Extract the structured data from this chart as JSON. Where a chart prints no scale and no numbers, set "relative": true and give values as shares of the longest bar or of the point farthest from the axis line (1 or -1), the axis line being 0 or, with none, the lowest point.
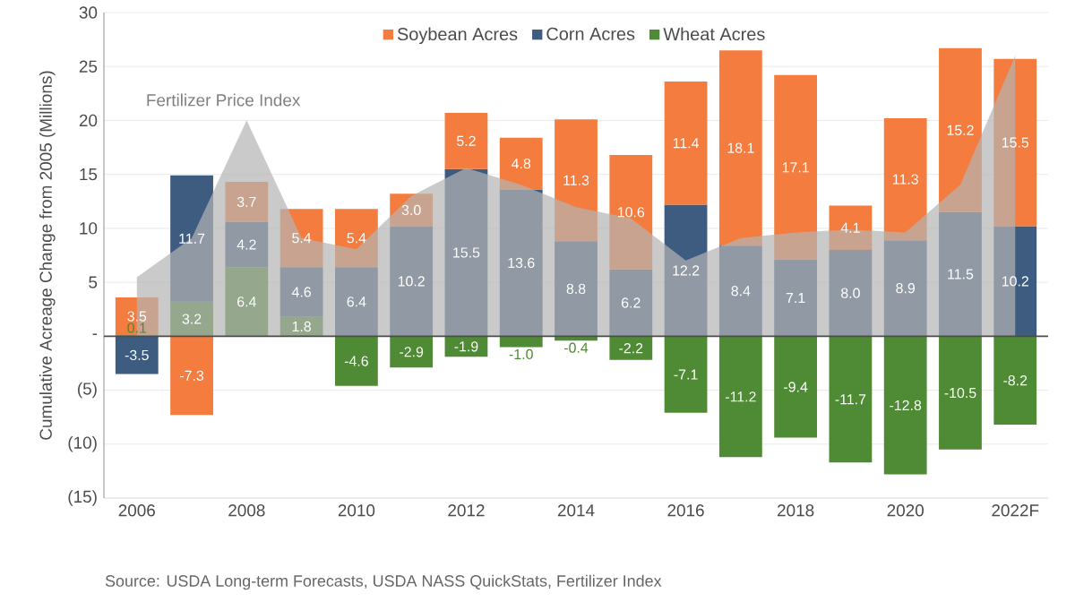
{
  "chart_data": [
    {
      "type": "bar",
      "stacked": true,
      "ylabel": "Cumulative Acreage Change from 2005 (Millions)",
      "categories": [
        "2006",
        null,
        "2008",
        null,
        "2010",
        null,
        "2012",
        null,
        "2014",
        null,
        "2016",
        null,
        "2018",
        null,
        "2020",
        null,
        "2022F"
      ],
      "series": [
        {
          "name": "Wheat Acres",
          "color": "#4f8a34",
          "values": [
            0.1,
            3.2,
            6.4,
            1.8,
            -4.6,
            -2.9,
            -1.9,
            -1.0,
            -0.4,
            -2.2,
            -7.1,
            -11.2,
            -9.4,
            -11.7,
            -12.8,
            -10.5,
            -8.2
          ],
          "value_labels": [
            "0.1",
            "3.2",
            "6.4",
            "1.8",
            "-4.6",
            "-2.9",
            "-1.9",
            "-1.0",
            "-0.4",
            "-2.2",
            "-7.1",
            "-11.2",
            "-9.4",
            "-11.7",
            "-12.8",
            "-10.5",
            "-8.2"
          ]
        },
        {
          "name": "Corn Acres",
          "color": "#3e5b80",
          "values": [
            -3.5,
            11.7,
            4.2,
            4.6,
            6.4,
            10.2,
            15.5,
            13.6,
            8.8,
            6.2,
            12.2,
            8.4,
            7.1,
            8.0,
            8.9,
            11.5,
            10.2
          ],
          "value_labels": [
            "-3.5",
            "11.7",
            "4.2",
            "4.6",
            "6.4",
            "10.2",
            "15.5",
            "13.6",
            "8.8",
            "6.2",
            "12.2",
            "8.4",
            "7.1",
            "8.0",
            "8.9",
            "11.5",
            "10.2"
          ]
        },
        {
          "name": "Soybean Acres",
          "color": "#f47c3f",
          "values": [
            3.5,
            -7.3,
            3.7,
            5.4,
            5.4,
            3.0,
            5.2,
            4.8,
            11.3,
            10.6,
            11.4,
            18.1,
            17.1,
            4.1,
            11.3,
            15.2,
            15.5
          ],
          "value_labels": [
            "3.5",
            "-7.3",
            "3.7",
            "5.4",
            "5.4",
            "3.0",
            "5.2",
            "4.8",
            "11.3",
            "10.6",
            "11.4",
            "18.1",
            "17.1",
            "4.1",
            "11.3",
            "15.2",
            "15.5"
          ]
        }
      ],
      "ylim": [
        -15,
        30
      ],
      "yticks": [
        {
          "value": -15,
          "label": "(15)"
        },
        {
          "value": -10,
          "label": "(10)"
        },
        {
          "value": -5,
          "label": "(5)"
        },
        {
          "value": 0,
          "label": "-"
        },
        5,
        10,
        15,
        20,
        25,
        30
      ],
      "grid": "y",
      "legend": "top",
      "annotations": [
        "Source: USDA Long-term Forecasts, USDA NASS QuickStats, Fertilizer Index"
      ]
    },
    {
      "type": "area",
      "relative": true,
      "tick_labels": false,
      "categories": [
        null,
        null,
        null,
        null,
        null,
        null,
        null,
        null,
        null,
        null,
        null,
        null,
        null,
        null,
        null,
        null,
        null
      ],
      "series": [
        {
          "name": "Fertilizer Price Index",
          "color": "#b4b4b4",
          "values": [
            0.21,
            0.35,
            0.77,
            0.35,
            0.31,
            0.5,
            0.6,
            0.54,
            0.46,
            0.42,
            0.27,
            0.35,
            0.37,
            0.38,
            0.37,
            0.54,
            1
          ]
        }
      ]
    }
  ]
}
